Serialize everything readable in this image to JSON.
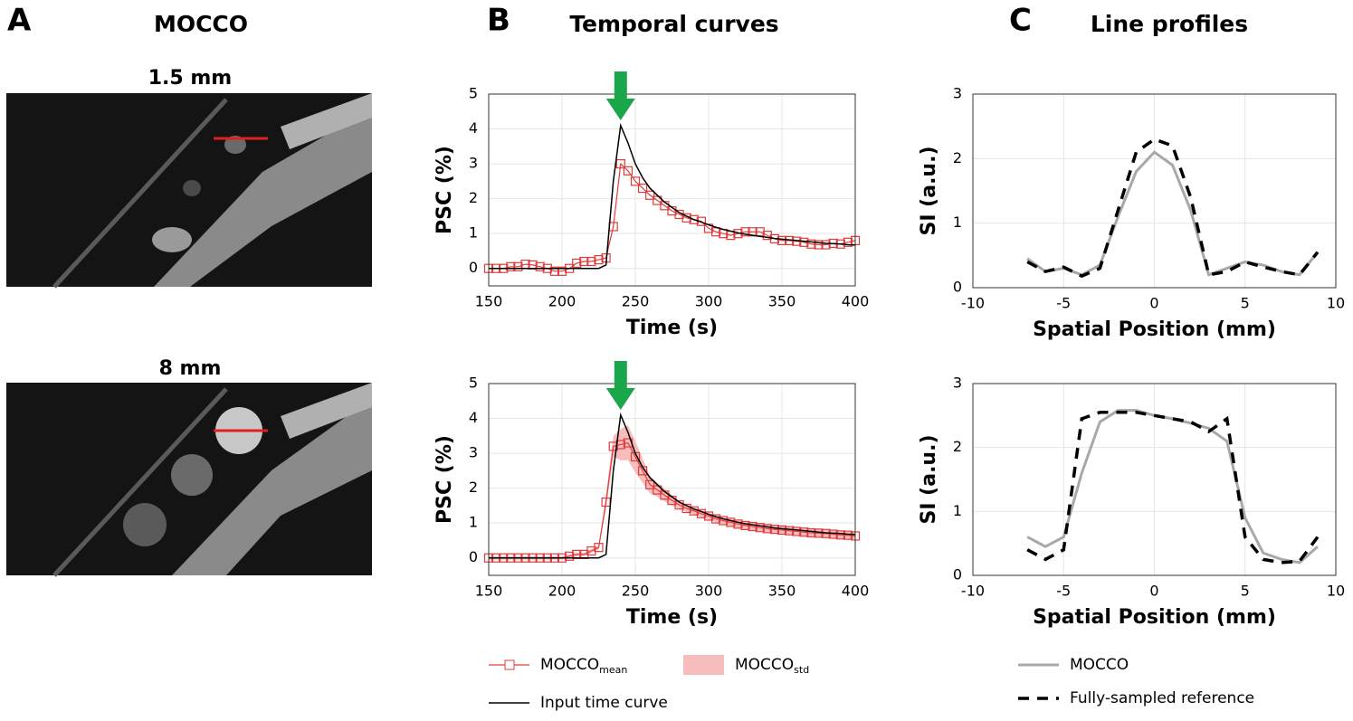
{
  "panels": [
    {
      "label": "A",
      "title": "MOCCO",
      "images": [
        "1.5 mm",
        "8 mm"
      ]
    },
    {
      "label": "B",
      "title": "Temporal curves"
    },
    {
      "label": "C",
      "title": "Line profiles"
    }
  ],
  "chart_data": [
    {
      "type": "line",
      "xlabel": "Time (s)",
      "ylabel": "PSC (%)",
      "xlim": [
        150,
        400
      ],
      "xticks": [
        150,
        200,
        250,
        300,
        350,
        400
      ],
      "ylim": [
        -0.5,
        5
      ],
      "yticks": [
        0,
        1,
        2,
        3,
        4,
        5
      ],
      "grid": true,
      "x": [
        150,
        155,
        160,
        165,
        170,
        175,
        180,
        185,
        190,
        195,
        200,
        205,
        210,
        215,
        220,
        225,
        230,
        235,
        240,
        245,
        250,
        255,
        260,
        265,
        270,
        275,
        280,
        285,
        290,
        295,
        300,
        305,
        310,
        315,
        320,
        325,
        330,
        335,
        340,
        345,
        350,
        355,
        360,
        365,
        370,
        375,
        380,
        385,
        390,
        395,
        400
      ],
      "series": [
        {
          "color": "#e03c3c",
          "marker": "square",
          "values": [
            0,
            0,
            0,
            0.05,
            0.05,
            0.12,
            0.1,
            0.05,
            0,
            -0.08,
            -0.08,
            0,
            0.15,
            0.2,
            0.2,
            0.25,
            0.3,
            1.2,
            3.0,
            2.8,
            2.5,
            2.3,
            2.1,
            1.95,
            1.8,
            1.65,
            1.55,
            1.45,
            1.4,
            1.35,
            1.15,
            1.05,
            1.0,
            0.95,
            1.0,
            1.05,
            1.05,
            1.05,
            0.95,
            0.85,
            0.8,
            0.8,
            0.78,
            0.75,
            0.7,
            0.68,
            0.68,
            0.72,
            0.7,
            0.75,
            0.8
          ]
        },
        {
          "color": "#000000",
          "values": [
            0,
            0,
            0,
            0,
            0,
            0,
            0,
            0,
            0,
            0,
            0,
            0,
            0,
            0,
            0,
            0,
            0.1,
            2.5,
            4.1,
            3.6,
            3.0,
            2.6,
            2.3,
            2.1,
            1.9,
            1.75,
            1.6,
            1.5,
            1.4,
            1.33,
            1.25,
            1.18,
            1.12,
            1.07,
            1.02,
            0.98,
            0.95,
            0.92,
            0.89,
            0.86,
            0.84,
            0.82,
            0.8,
            0.78,
            0.76,
            0.74,
            0.72,
            0.71,
            0.7,
            0.68,
            0.67
          ]
        }
      ],
      "annotations": [
        {
          "type": "arrow",
          "x": 240,
          "color": "#1aa64a"
        }
      ]
    },
    {
      "type": "line",
      "xlabel": "Time (s)",
      "ylabel": "PSC (%)",
      "xlim": [
        150,
        400
      ],
      "xticks": [
        150,
        200,
        250,
        300,
        350,
        400
      ],
      "ylim": [
        -0.5,
        5
      ],
      "yticks": [
        0,
        1,
        2,
        3,
        4,
        5
      ],
      "grid": true,
      "x": [
        150,
        155,
        160,
        165,
        170,
        175,
        180,
        185,
        190,
        195,
        200,
        205,
        210,
        215,
        220,
        225,
        230,
        235,
        240,
        245,
        250,
        255,
        260,
        265,
        270,
        275,
        280,
        285,
        290,
        295,
        300,
        305,
        310,
        315,
        320,
        325,
        330,
        335,
        340,
        345,
        350,
        355,
        360,
        365,
        370,
        375,
        380,
        385,
        390,
        395,
        400
      ],
      "series": [
        {
          "name": "MOCCO",
          "name_subscript": "mean",
          "color": "#e03c3c",
          "marker": "square",
          "values": [
            0,
            0,
            0,
            0,
            0,
            0,
            0,
            0,
            0,
            0,
            0,
            0.05,
            0.1,
            0.1,
            0.2,
            0.3,
            1.6,
            3.2,
            3.25,
            3.3,
            2.9,
            2.5,
            2.1,
            1.95,
            1.8,
            1.65,
            1.52,
            1.42,
            1.35,
            1.27,
            1.2,
            1.12,
            1.07,
            1.02,
            0.97,
            0.93,
            0.9,
            0.87,
            0.84,
            0.82,
            0.8,
            0.78,
            0.76,
            0.74,
            0.72,
            0.71,
            0.7,
            0.68,
            0.66,
            0.65,
            0.63
          ]
        },
        {
          "name": "MOCCO",
          "name_subscript": "std",
          "color": "#f7bcbc",
          "kind": "band",
          "values": [
            0.05,
            0.05,
            0.05,
            0.05,
            0.05,
            0.05,
            0.05,
            0.05,
            0.05,
            0.05,
            0.05,
            0.05,
            0.05,
            0.05,
            0.05,
            0.05,
            0.2,
            0.3,
            0.45,
            0.5,
            0.45,
            0.35,
            0.25,
            0.2,
            0.18,
            0.15,
            0.1,
            0.1,
            0.1,
            0.1,
            0.1,
            0.1,
            0.1,
            0.1,
            0.1,
            0.1,
            0.1,
            0.1,
            0.1,
            0.1,
            0.1,
            0.1,
            0.1,
            0.1,
            0.1,
            0.1,
            0.1,
            0.1,
            0.1,
            0.1,
            0.1
          ]
        },
        {
          "name": "Input time curve",
          "color": "#000000",
          "values": [
            0,
            0,
            0,
            0,
            0,
            0,
            0,
            0,
            0,
            0,
            0,
            0,
            0,
            0,
            0,
            0,
            0.1,
            2.5,
            4.1,
            3.6,
            3.0,
            2.6,
            2.3,
            2.1,
            1.9,
            1.75,
            1.6,
            1.5,
            1.4,
            1.33,
            1.25,
            1.18,
            1.12,
            1.07,
            1.02,
            0.98,
            0.95,
            0.92,
            0.89,
            0.86,
            0.84,
            0.82,
            0.8,
            0.78,
            0.76,
            0.74,
            0.72,
            0.71,
            0.7,
            0.68,
            0.67
          ]
        }
      ],
      "annotations": [
        {
          "type": "arrow",
          "x": 240,
          "color": "#1aa64a"
        }
      ],
      "legend": "below"
    },
    {
      "type": "line",
      "xlabel": "Spatial Position (mm)",
      "ylabel": "SI (a.u.)",
      "xlim": [
        -10,
        10
      ],
      "xticks": [
        -10,
        -5,
        0,
        5,
        10
      ],
      "ylim": [
        0,
        3
      ],
      "yticks": [
        0,
        1,
        2,
        3
      ],
      "grid": true,
      "x": [
        -7,
        -6,
        -5,
        -4,
        -3,
        -2,
        -1,
        0,
        1,
        2,
        3,
        4,
        5,
        6,
        7,
        8,
        9
      ],
      "series": [
        {
          "color": "#a8a8a8",
          "values": [
            0.45,
            0.25,
            0.3,
            0.2,
            0.35,
            1.1,
            1.8,
            2.1,
            1.9,
            1.2,
            0.2,
            0.3,
            0.4,
            0.35,
            0.25,
            0.2,
            0.55
          ]
        },
        {
          "color": "#000000",
          "dash": true,
          "values": [
            0.4,
            0.25,
            0.32,
            0.18,
            0.3,
            1.2,
            2.1,
            2.3,
            2.2,
            1.4,
            0.2,
            0.25,
            0.4,
            0.32,
            0.25,
            0.2,
            0.55
          ]
        }
      ]
    },
    {
      "type": "line",
      "xlabel": "Spatial Position (mm)",
      "ylabel": "SI (a.u.)",
      "xlim": [
        -10,
        10
      ],
      "xticks": [
        -10,
        -5,
        0,
        5,
        10
      ],
      "ylim": [
        0,
        3
      ],
      "yticks": [
        0,
        1,
        2,
        3
      ],
      "grid": true,
      "x": [
        -7,
        -6,
        -5,
        -4,
        -3,
        -2,
        -1,
        0,
        1,
        2,
        3,
        4,
        5,
        6,
        7,
        8,
        9
      ],
      "series": [
        {
          "name": "MOCCO",
          "color": "#a8a8a8",
          "values": [
            0.6,
            0.45,
            0.6,
            1.6,
            2.4,
            2.58,
            2.58,
            2.5,
            2.45,
            2.38,
            2.3,
            2.1,
            0.9,
            0.35,
            0.25,
            0.2,
            0.45
          ]
        },
        {
          "name": "Fully-sampled reference",
          "color": "#000000",
          "dash": true,
          "values": [
            0.4,
            0.25,
            0.4,
            2.45,
            2.55,
            2.55,
            2.55,
            2.5,
            2.45,
            2.4,
            2.25,
            2.45,
            0.6,
            0.25,
            0.2,
            0.22,
            0.6
          ]
        }
      ],
      "legend": "below"
    }
  ]
}
